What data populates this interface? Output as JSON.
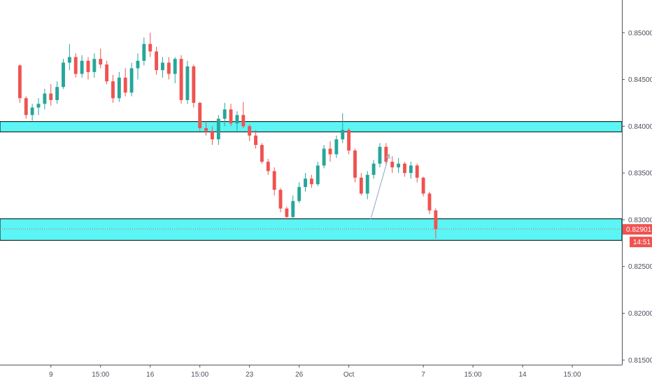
{
  "chart_data": {
    "type": "candlestick",
    "title": "",
    "ylim": [
      0.8145,
      0.8535
    ],
    "y_ticks": [
      "0.85000",
      "0.84500",
      "0.84000",
      "0.83500",
      "0.83000",
      "0.82500",
      "0.82000",
      "0.81500"
    ],
    "y_tick_values": [
      0.85,
      0.845,
      0.84,
      0.835,
      0.83,
      0.825,
      0.82,
      0.815
    ],
    "x_ticks": [
      {
        "label": "9",
        "pos": 5
      },
      {
        "label": "15:00",
        "pos": 13
      },
      {
        "label": "16",
        "pos": 21
      },
      {
        "label": "15:00",
        "pos": 29
      },
      {
        "label": "23",
        "pos": 37
      },
      {
        "label": "26",
        "pos": 45
      },
      {
        "label": "Oct",
        "pos": 53
      },
      {
        "label": "7",
        "pos": 65
      },
      {
        "label": "15:00",
        "pos": 73
      },
      {
        "label": "14",
        "pos": 81
      },
      {
        "label": "15:00",
        "pos": 89
      }
    ],
    "x_range": [
      -3.2,
      97
    ],
    "up_color": "#26a69a",
    "down_color": "#ef5350",
    "candles": [
      [
        0.8465,
        0.8466,
        0.8425,
        0.843
      ],
      [
        0.843,
        0.8432,
        0.8408,
        0.8412
      ],
      [
        0.8412,
        0.8424,
        0.8406,
        0.842
      ],
      [
        0.842,
        0.843,
        0.8412,
        0.8424
      ],
      [
        0.8424,
        0.844,
        0.8418,
        0.8435
      ],
      [
        0.8435,
        0.8445,
        0.8422,
        0.8428
      ],
      [
        0.8428,
        0.8448,
        0.8424,
        0.8442
      ],
      [
        0.8442,
        0.8472,
        0.844,
        0.8468
      ],
      [
        0.8468,
        0.8488,
        0.846,
        0.8474
      ],
      [
        0.8474,
        0.8478,
        0.8452,
        0.8456
      ],
      [
        0.8456,
        0.8476,
        0.8452,
        0.847
      ],
      [
        0.847,
        0.8474,
        0.845,
        0.8458
      ],
      [
        0.8458,
        0.8478,
        0.8452,
        0.8472
      ],
      [
        0.8472,
        0.8483,
        0.8462,
        0.8466
      ],
      [
        0.8466,
        0.847,
        0.8445,
        0.8448
      ],
      [
        0.8448,
        0.8455,
        0.8425,
        0.843
      ],
      [
        0.843,
        0.8458,
        0.8426,
        0.8452
      ],
      [
        0.8452,
        0.8462,
        0.8432,
        0.8436
      ],
      [
        0.8436,
        0.8468,
        0.8432,
        0.8462
      ],
      [
        0.8462,
        0.8478,
        0.845,
        0.847
      ],
      [
        0.847,
        0.8495,
        0.8465,
        0.8488
      ],
      [
        0.8488,
        0.85,
        0.8474,
        0.848
      ],
      [
        0.848,
        0.8485,
        0.8455,
        0.846
      ],
      [
        0.846,
        0.8474,
        0.8452,
        0.8468
      ],
      [
        0.8468,
        0.8474,
        0.845,
        0.8456
      ],
      [
        0.8456,
        0.8474,
        0.8446,
        0.8472
      ],
      [
        0.8472,
        0.8476,
        0.8424,
        0.8428
      ],
      [
        0.8428,
        0.847,
        0.8424,
        0.8464
      ],
      [
        0.8464,
        0.8466,
        0.842,
        0.8425
      ],
      [
        0.8425,
        0.8426,
        0.8395,
        0.8398
      ],
      [
        0.8398,
        0.8404,
        0.839,
        0.8395
      ],
      [
        0.8395,
        0.84,
        0.838,
        0.8386
      ],
      [
        0.8386,
        0.8412,
        0.838,
        0.8408
      ],
      [
        0.8408,
        0.8425,
        0.84,
        0.8418
      ],
      [
        0.8418,
        0.8424,
        0.84,
        0.8403
      ],
      [
        0.8403,
        0.8416,
        0.8395,
        0.8412
      ],
      [
        0.8412,
        0.8426,
        0.8398,
        0.84
      ],
      [
        0.84,
        0.8402,
        0.8384,
        0.839
      ],
      [
        0.839,
        0.8396,
        0.8376,
        0.838
      ],
      [
        0.838,
        0.8382,
        0.836,
        0.8362
      ],
      [
        0.8362,
        0.8365,
        0.8348,
        0.8352
      ],
      [
        0.8352,
        0.8356,
        0.8326,
        0.8332
      ],
      [
        0.8332,
        0.8334,
        0.8308,
        0.8312
      ],
      [
        0.8312,
        0.8314,
        0.83,
        0.8303
      ],
      [
        0.8303,
        0.8326,
        0.83,
        0.832
      ],
      [
        0.832,
        0.834,
        0.8318,
        0.8335
      ],
      [
        0.8335,
        0.835,
        0.833,
        0.8344
      ],
      [
        0.8344,
        0.8348,
        0.8334,
        0.8338
      ],
      [
        0.8338,
        0.8362,
        0.8336,
        0.8358
      ],
      [
        0.8358,
        0.838,
        0.8355,
        0.8376
      ],
      [
        0.8376,
        0.8384,
        0.8362,
        0.837
      ],
      [
        0.837,
        0.839,
        0.8366,
        0.8386
      ],
      [
        0.8386,
        0.8414,
        0.8382,
        0.8396
      ],
      [
        0.8396,
        0.8398,
        0.837,
        0.8374
      ],
      [
        0.8374,
        0.8376,
        0.834,
        0.8345
      ],
      [
        0.8345,
        0.835,
        0.8326,
        0.8328
      ],
      [
        0.8328,
        0.8352,
        0.8322,
        0.8348
      ],
      [
        0.8348,
        0.8364,
        0.8344,
        0.836
      ],
      [
        0.836,
        0.8382,
        0.8356,
        0.8378
      ],
      [
        0.8378,
        0.8382,
        0.8358,
        0.8362
      ],
      [
        0.8362,
        0.8368,
        0.835,
        0.8356
      ],
      [
        0.8356,
        0.8366,
        0.835,
        0.836
      ],
      [
        0.836,
        0.8362,
        0.8346,
        0.835
      ],
      [
        0.835,
        0.8362,
        0.8344,
        0.8358
      ],
      [
        0.8358,
        0.836,
        0.834,
        0.8345
      ],
      [
        0.8345,
        0.8346,
        0.8325,
        0.8328
      ],
      [
        0.8328,
        0.833,
        0.8306,
        0.831
      ],
      [
        0.831,
        0.8312,
        0.828,
        0.829
      ]
    ]
  },
  "zones": [
    {
      "top": 0.8405,
      "bottom": 0.8394,
      "fill": "#5cf5f5"
    },
    {
      "top": 0.8301,
      "bottom": 0.8278,
      "fill": "#5cf5f5"
    }
  ],
  "arrow": {
    "from": {
      "x": 56.5,
      "y": 0.83
    },
    "to": {
      "x": 59.5,
      "y": 0.837
    },
    "color": "#9fb3cc"
  },
  "last_price": {
    "value": 0.82901,
    "label": "0.82901",
    "countdown": "14:51",
    "color": "#ef5350"
  }
}
